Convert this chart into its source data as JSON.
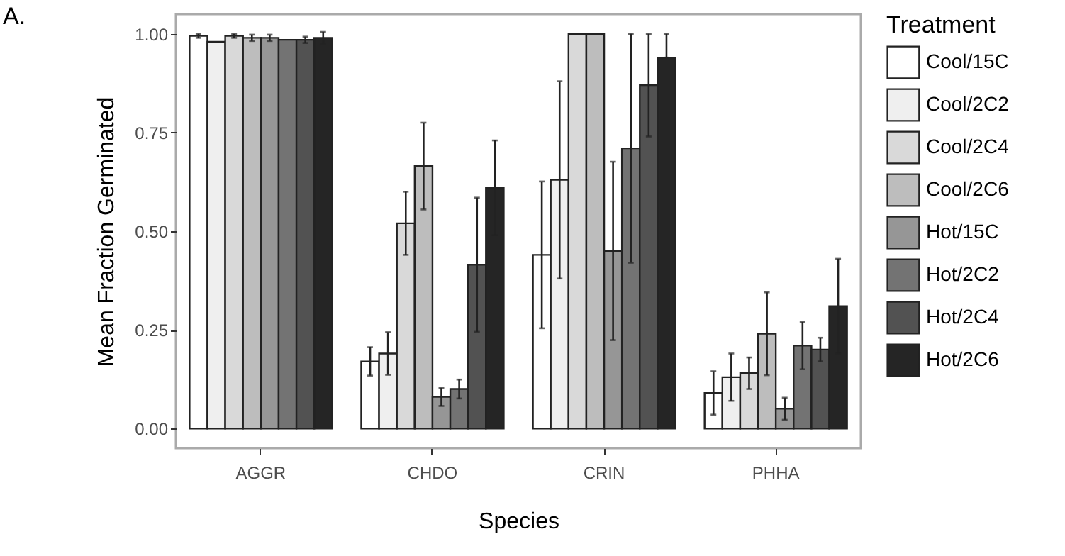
{
  "chart_data": {
    "type": "bar",
    "xlabel": "Species",
    "ylabel": "Mean Fraction Germinated",
    "legend_title": "Treatment",
    "legend": "right",
    "grid": false,
    "annotations": [
      "A."
    ],
    "categories": [
      "AGGR",
      "CHDO",
      "CRIN",
      "PHHA"
    ],
    "ylim": [
      -0.05,
      1.05
    ],
    "yticks": [
      {
        "value": 0,
        "label": "0.00"
      },
      {
        "value": 0.25,
        "label": "0.25"
      },
      {
        "value": 0.5,
        "label": "0.50"
      },
      {
        "value": 0.75,
        "label": "0.75"
      },
      {
        "value": 1,
        "label": "1.00"
      }
    ],
    "series": [
      {
        "name": "Cool/15C",
        "color": "#ffffff",
        "values": [
          0.995,
          0.17,
          0.44,
          0.09
        ],
        "errors": [
          0.005,
          0.036,
          0.186,
          0.055
        ]
      },
      {
        "name": "Cool/2C2",
        "color": "#efefef",
        "values": [
          0.98,
          0.19,
          0.63,
          0.13
        ],
        "errors": [
          null,
          0.054,
          0.25,
          0.06
        ]
      },
      {
        "name": "Cool/2C4",
        "color": "#d9d9d9",
        "values": [
          0.995,
          0.52,
          1.0,
          0.14
        ],
        "errors": [
          0.005,
          0.08,
          null,
          0.04
        ]
      },
      {
        "name": "Cool/2C6",
        "color": "#bdbdbd",
        "values": [
          0.99,
          0.665,
          1.0,
          0.24
        ],
        "errors": [
          0.008,
          0.11,
          null,
          0.105
        ]
      },
      {
        "name": "Hot/15C",
        "color": "#969696",
        "values": [
          0.99,
          0.08,
          0.45,
          0.05
        ],
        "errors": [
          0.008,
          0.023,
          0.226,
          0.028
        ]
      },
      {
        "name": "Hot/2C2",
        "color": "#737373",
        "values": [
          0.985,
          0.1,
          0.71,
          0.21
        ],
        "errors": [
          null,
          0.024,
          [
            0.42,
            1.0
          ],
          0.06
        ]
      },
      {
        "name": "Hot/2C4",
        "color": "#525252",
        "values": [
          0.985,
          0.415,
          0.87,
          0.2
        ],
        "errors": [
          0.008,
          0.17,
          [
            0.74,
            1.0
          ],
          0.03
        ]
      },
      {
        "name": "Hot/2C6",
        "color": "#252525",
        "values": [
          0.99,
          0.61,
          0.94,
          0.31
        ],
        "errors": [
          0.015,
          0.12,
          [
            0.94,
            1.0
          ],
          0.12
        ]
      }
    ]
  }
}
